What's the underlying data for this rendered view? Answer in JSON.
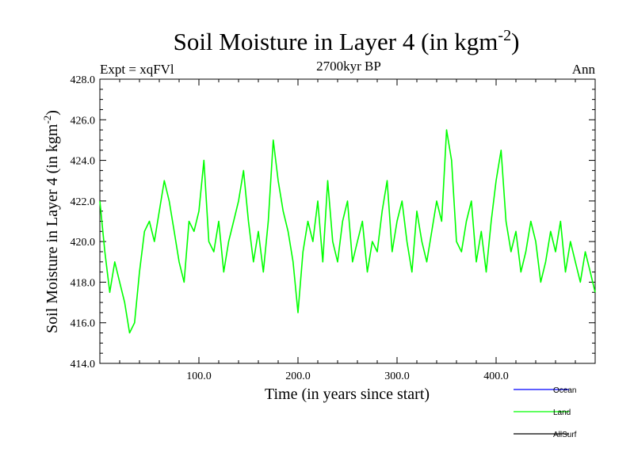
{
  "chart_data": {
    "type": "line",
    "title_main": "Soil Moisture in Layer 4 (in kgm",
    "title_sup": "-2",
    "title_close": ")",
    "subtitle_left": "Expt = xqFVl",
    "subtitle_center": "2700kyr BP",
    "subtitle_right": "Ann",
    "xlabel": "Time (in years since start)",
    "ylabel_main": "Soil Moisture in Layer 4 (in kgm",
    "ylabel_sup": "-2",
    "ylabel_close": ")",
    "xlim": [
      0,
      500
    ],
    "ylim": [
      414.0,
      428.0
    ],
    "x_ticks": [
      100,
      200,
      300,
      400
    ],
    "x_tick_labels": [
      "100.0",
      "200.0",
      "300.0",
      "400.0"
    ],
    "y_ticks": [
      414,
      416,
      418,
      420,
      422,
      424,
      426,
      428
    ],
    "y_tick_labels": [
      "414.0",
      "416.0",
      "418.0",
      "420.0",
      "422.0",
      "424.0",
      "426.0",
      "428.0"
    ],
    "legend": [
      {
        "label": "Ocean",
        "color": "#0000ff"
      },
      {
        "label": "Land",
        "color": "#00ff00"
      },
      {
        "label": "AllSurf",
        "color": "#000000"
      }
    ],
    "series": [
      {
        "name": "Land",
        "color": "#00ff00",
        "x": [
          0,
          5,
          10,
          15,
          20,
          25,
          30,
          35,
          40,
          45,
          50,
          55,
          60,
          65,
          70,
          75,
          80,
          85,
          90,
          95,
          100,
          105,
          110,
          115,
          120,
          125,
          130,
          135,
          140,
          145,
          150,
          155,
          160,
          165,
          170,
          175,
          180,
          185,
          190,
          195,
          200,
          205,
          210,
          215,
          220,
          225,
          230,
          235,
          240,
          245,
          250,
          255,
          260,
          265,
          270,
          275,
          280,
          285,
          290,
          295,
          300,
          305,
          310,
          315,
          320,
          325,
          330,
          335,
          340,
          345,
          350,
          355,
          360,
          365,
          370,
          375,
          380,
          385,
          390,
          395,
          400,
          405,
          410,
          415,
          420,
          425,
          430,
          435,
          440,
          445,
          450,
          455,
          460,
          465,
          470,
          475,
          480,
          485,
          490,
          495,
          500
        ],
        "values": [
          422.0,
          419.5,
          417.5,
          419.0,
          418.0,
          417.0,
          415.5,
          416.0,
          418.5,
          420.5,
          421.0,
          420.0,
          421.5,
          423.0,
          422.0,
          420.5,
          419.0,
          418.0,
          421.0,
          420.5,
          421.5,
          424.0,
          420.0,
          419.5,
          421.0,
          418.5,
          420.0,
          421.0,
          422.0,
          423.5,
          421.0,
          419.0,
          420.5,
          418.5,
          421.0,
          425.0,
          423.0,
          421.5,
          420.5,
          419.0,
          416.5,
          419.5,
          421.0,
          420.0,
          422.0,
          419.0,
          423.0,
          420.0,
          419.0,
          421.0,
          422.0,
          419.0,
          420.0,
          421.0,
          418.5,
          420.0,
          419.5,
          421.5,
          423.0,
          419.5,
          421.0,
          422.0,
          420.0,
          418.5,
          421.5,
          420.0,
          419.0,
          420.5,
          422.0,
          421.0,
          425.5,
          424.0,
          420.0,
          419.5,
          421.0,
          422.0,
          419.0,
          420.5,
          418.5,
          421.0,
          423.0,
          424.5,
          421.0,
          419.5,
          420.5,
          418.5,
          419.5,
          421.0,
          420.0,
          418.0,
          419.0,
          420.5,
          419.5,
          421.0,
          418.5,
          420.0,
          419.0,
          418.0,
          419.5,
          418.5,
          417.5
        ]
      }
    ]
  }
}
